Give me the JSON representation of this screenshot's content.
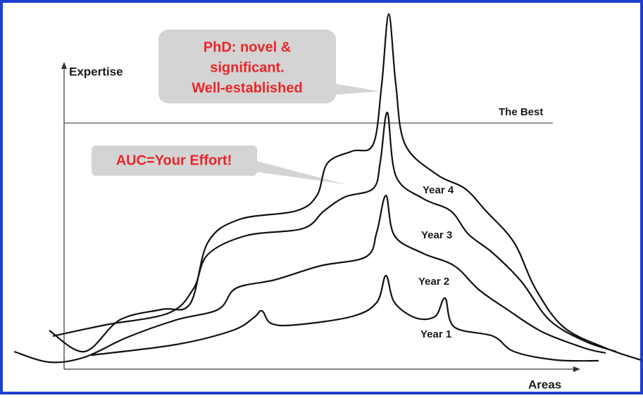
{
  "axes": {
    "y_label": "Expertise",
    "x_label": "Areas"
  },
  "reference_line": {
    "label": "The Best"
  },
  "callouts": [
    {
      "lines": [
        "PhD: novel &",
        "significant.",
        "Well-established"
      ]
    },
    {
      "lines": [
        "AUC=Your Effort!"
      ]
    }
  ],
  "curves": [
    {
      "label": "Year 1"
    },
    {
      "label": "Year 2"
    },
    {
      "label": "Year 3"
    },
    {
      "label": "Year 4"
    }
  ]
}
